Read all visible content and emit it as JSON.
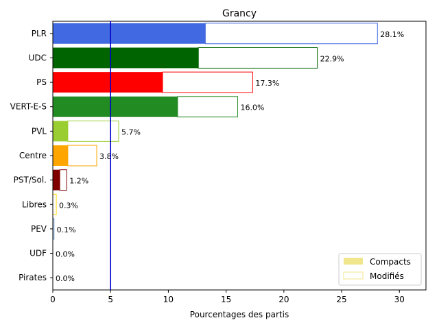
{
  "chart_data": {
    "type": "bar",
    "orientation": "horizontal",
    "title": "Grancy",
    "xlabel": "Pourcentages des partis",
    "ylabel": "",
    "xlim": [
      0,
      32.3
    ],
    "xticks": [
      0,
      5,
      10,
      15,
      20,
      25,
      30
    ],
    "reference_line": {
      "x": 5,
      "color": "#0000cc"
    },
    "categories": [
      "PLR",
      "UDC",
      "PS",
      "VERT-E-S",
      "PVL",
      "Centre",
      "PST/Sol.",
      "Libres",
      "PEV",
      "UDF",
      "Pirates"
    ],
    "colors": [
      "#4169e1",
      "#006400",
      "#ff0000",
      "#228b22",
      "#9acd32",
      "#ffa500",
      "#800000",
      "#ffd700",
      "#4682b4",
      "#8b4513",
      "#9370db"
    ],
    "series": [
      {
        "name": "Compacts",
        "values": [
          13.2,
          12.6,
          9.5,
          10.8,
          1.3,
          1.3,
          0.6,
          0.0,
          0.0,
          0.0,
          0.0
        ]
      },
      {
        "name": "Modifiés",
        "values": [
          14.9,
          10.3,
          7.8,
          5.2,
          4.4,
          2.5,
          0.6,
          0.3,
          0.1,
          0.0,
          0.0
        ]
      }
    ],
    "totals": [
      28.1,
      22.9,
      17.3,
      16.0,
      5.7,
      3.8,
      1.2,
      0.3,
      0.1,
      0.0,
      0.0
    ],
    "data_labels": [
      "28.1%",
      "22.9%",
      "17.3%",
      "16.0%",
      "5.7%",
      "3.8%",
      "1.2%",
      "0.3%",
      "0.1%",
      "0.0%",
      "0.0%"
    ],
    "legend": {
      "position": "lower-right",
      "entries": [
        {
          "label": "Compacts",
          "swatch": "#f0e68c",
          "style": "filled"
        },
        {
          "label": "Modifiés",
          "swatch": "#f0e68c",
          "style": "outline"
        }
      ]
    },
    "grid": false
  }
}
